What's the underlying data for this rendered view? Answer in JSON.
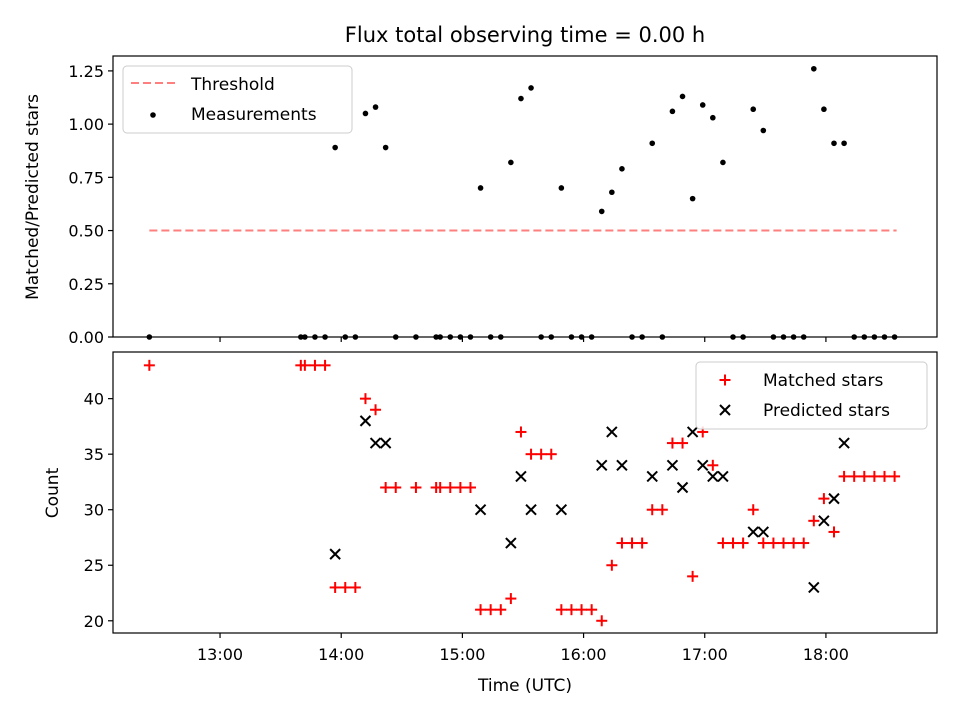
{
  "chart_data": [
    {
      "type": "scatter",
      "title": "Flux total observing time = 0.00 h",
      "xlabel": "",
      "ylabel": "Matched/Predicted stars",
      "ylim": [
        0,
        1.32
      ],
      "yticks": [
        0.0,
        0.25,
        0.5,
        0.75,
        1.0,
        1.25
      ],
      "ytick_labels": [
        "0.00",
        "0.25",
        "0.50",
        "0.75",
        "1.00",
        "1.25"
      ],
      "xlim": [
        "12:07",
        "18:55"
      ],
      "xticks": [
        "13:00",
        "14:00",
        "15:00",
        "16:00",
        "17:00",
        "18:00"
      ],
      "legend_position": "top-left",
      "threshold": {
        "name": "Threshold",
        "value": 0.5,
        "x_range": [
          "12:25",
          "18:35"
        ],
        "color": "#ff7f7f"
      },
      "measurements": {
        "name": "Measurements",
        "color": "#000000",
        "points": [
          [
            "12:25",
            0.0
          ],
          [
            "13:40",
            0.0
          ],
          [
            "13:42",
            0.0
          ],
          [
            "13:47",
            0.0
          ],
          [
            "13:52",
            0.0
          ],
          [
            "13:57",
            0.89
          ],
          [
            "14:02",
            0.0
          ],
          [
            "14:07",
            0.0
          ],
          [
            "14:12",
            1.05
          ],
          [
            "14:17",
            1.08
          ],
          [
            "14:22",
            0.89
          ],
          [
            "14:27",
            0.0
          ],
          [
            "14:37",
            0.0
          ],
          [
            "14:47",
            0.0
          ],
          [
            "14:49",
            0.0
          ],
          [
            "14:54",
            0.0
          ],
          [
            "14:59",
            0.0
          ],
          [
            "15:04",
            0.0
          ],
          [
            "15:09",
            0.7
          ],
          [
            "15:14",
            0.0
          ],
          [
            "15:19",
            0.0
          ],
          [
            "15:24",
            0.82
          ],
          [
            "15:29",
            1.12
          ],
          [
            "15:34",
            1.17
          ],
          [
            "15:39",
            0.0
          ],
          [
            "15:44",
            0.0
          ],
          [
            "15:49",
            0.7
          ],
          [
            "15:54",
            0.0
          ],
          [
            "15:59",
            0.0
          ],
          [
            "16:04",
            0.0
          ],
          [
            "16:09",
            0.59
          ],
          [
            "16:14",
            0.68
          ],
          [
            "16:19",
            0.79
          ],
          [
            "16:24",
            0.0
          ],
          [
            "16:29",
            0.0
          ],
          [
            "16:34",
            0.91
          ],
          [
            "16:39",
            0.0
          ],
          [
            "16:44",
            1.06
          ],
          [
            "16:49",
            1.13
          ],
          [
            "16:54",
            0.65
          ],
          [
            "16:59",
            1.09
          ],
          [
            "17:04",
            1.03
          ],
          [
            "17:09",
            0.82
          ],
          [
            "17:14",
            0.0
          ],
          [
            "17:19",
            0.0
          ],
          [
            "17:24",
            1.07
          ],
          [
            "17:29",
            0.97
          ],
          [
            "17:34",
            0.0
          ],
          [
            "17:39",
            0.0
          ],
          [
            "17:44",
            0.0
          ],
          [
            "17:49",
            0.0
          ],
          [
            "17:54",
            1.26
          ],
          [
            "17:59",
            1.07
          ],
          [
            "18:04",
            0.91
          ],
          [
            "18:09",
            0.91
          ],
          [
            "18:14",
            0.0
          ],
          [
            "18:19",
            0.0
          ],
          [
            "18:24",
            0.0
          ],
          [
            "18:29",
            0.0
          ],
          [
            "18:34",
            0.0
          ]
        ]
      }
    },
    {
      "type": "scatter",
      "title": "",
      "xlabel": "Time (UTC)",
      "ylabel": "Count",
      "ylim": [
        18.9,
        44.2
      ],
      "yticks": [
        20,
        25,
        30,
        35,
        40
      ],
      "xlim": [
        "12:07",
        "18:55"
      ],
      "xticks": [
        "13:00",
        "14:00",
        "15:00",
        "16:00",
        "17:00",
        "18:00"
      ],
      "legend_position": "top-right",
      "series": [
        {
          "name": "Matched stars",
          "marker": "plus",
          "color": "#ff0000",
          "points": [
            [
              "12:25",
              43
            ],
            [
              "13:40",
              43
            ],
            [
              "13:42",
              43
            ],
            [
              "13:47",
              43
            ],
            [
              "13:52",
              43
            ],
            [
              "13:57",
              23
            ],
            [
              "14:02",
              23
            ],
            [
              "14:07",
              23
            ],
            [
              "14:12",
              40
            ],
            [
              "14:17",
              39
            ],
            [
              "14:22",
              32
            ],
            [
              "14:27",
              32
            ],
            [
              "14:37",
              32
            ],
            [
              "14:47",
              32
            ],
            [
              "14:49",
              32
            ],
            [
              "14:54",
              32
            ],
            [
              "14:59",
              32
            ],
            [
              "15:04",
              32
            ],
            [
              "15:09",
              21
            ],
            [
              "15:14",
              21
            ],
            [
              "15:19",
              21
            ],
            [
              "15:24",
              22
            ],
            [
              "15:29",
              37
            ],
            [
              "15:34",
              35
            ],
            [
              "15:39",
              35
            ],
            [
              "15:44",
              35
            ],
            [
              "15:49",
              21
            ],
            [
              "15:54",
              21
            ],
            [
              "15:59",
              21
            ],
            [
              "16:04",
              21
            ],
            [
              "16:09",
              20
            ],
            [
              "16:14",
              25
            ],
            [
              "16:19",
              27
            ],
            [
              "16:24",
              27
            ],
            [
              "16:29",
              27
            ],
            [
              "16:34",
              30
            ],
            [
              "16:39",
              30
            ],
            [
              "16:44",
              36
            ],
            [
              "16:49",
              36
            ],
            [
              "16:54",
              24
            ],
            [
              "16:59",
              37
            ],
            [
              "17:04",
              34
            ],
            [
              "17:09",
              27
            ],
            [
              "17:14",
              27
            ],
            [
              "17:19",
              27
            ],
            [
              "17:24",
              30
            ],
            [
              "17:29",
              27
            ],
            [
              "17:34",
              27
            ],
            [
              "17:39",
              27
            ],
            [
              "17:44",
              27
            ],
            [
              "17:49",
              27
            ],
            [
              "17:54",
              29
            ],
            [
              "17:59",
              31
            ],
            [
              "18:04",
              28
            ],
            [
              "18:09",
              33
            ],
            [
              "18:14",
              33
            ],
            [
              "18:19",
              33
            ],
            [
              "18:24",
              33
            ],
            [
              "18:29",
              33
            ],
            [
              "18:34",
              33
            ]
          ]
        },
        {
          "name": "Predicted stars",
          "marker": "x",
          "color": "#000000",
          "points": [
            [
              "13:57",
              26
            ],
            [
              "14:12",
              38
            ],
            [
              "14:17",
              36
            ],
            [
              "14:22",
              36
            ],
            [
              "15:09",
              30
            ],
            [
              "15:24",
              27
            ],
            [
              "15:29",
              33
            ],
            [
              "15:34",
              30
            ],
            [
              "15:49",
              30
            ],
            [
              "16:09",
              34
            ],
            [
              "16:14",
              37
            ],
            [
              "16:19",
              34
            ],
            [
              "16:34",
              33
            ],
            [
              "16:44",
              34
            ],
            [
              "16:49",
              32
            ],
            [
              "16:54",
              37
            ],
            [
              "16:59",
              34
            ],
            [
              "17:04",
              33
            ],
            [
              "17:09",
              33
            ],
            [
              "17:24",
              28
            ],
            [
              "17:29",
              28
            ],
            [
              "17:54",
              23
            ],
            [
              "17:59",
              29
            ],
            [
              "18:04",
              31
            ],
            [
              "18:09",
              36
            ]
          ]
        }
      ]
    }
  ]
}
